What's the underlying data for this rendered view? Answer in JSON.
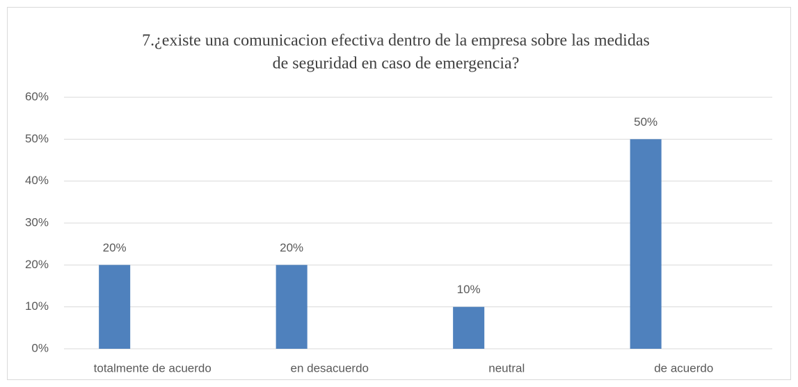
{
  "chart_data": {
    "type": "bar",
    "title": [
      "7.¿existe una comunicacion efectiva dentro de la empresa sobre las medidas",
      "de seguridad en caso de emergencia?"
    ],
    "categories": [
      "totalmente de acuerdo",
      "en desacuerdo",
      "neutral",
      "de acuerdo"
    ],
    "values": [
      20,
      20,
      10,
      50
    ],
    "value_labels": [
      "20%",
      "20%",
      "10%",
      "50%"
    ],
    "color": "#4f81bd",
    "ylim": [
      0,
      60
    ],
    "yticks": [
      {
        "value": 0,
        "label": "0%"
      },
      {
        "value": 10,
        "label": "10%"
      },
      {
        "value": 20,
        "label": "20%"
      },
      {
        "value": 30,
        "label": "30%"
      },
      {
        "value": 40,
        "label": "40%"
      },
      {
        "value": 50,
        "label": "50%"
      },
      {
        "value": 60,
        "label": "60%"
      }
    ],
    "grid": true
  }
}
